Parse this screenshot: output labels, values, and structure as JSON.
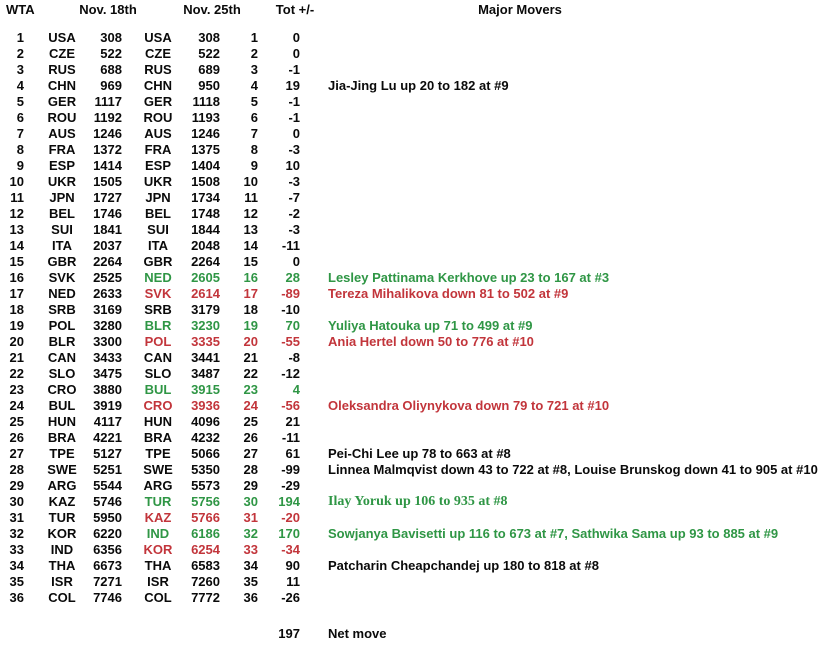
{
  "header": {
    "wta": "WTA",
    "nov18": "Nov. 18th",
    "nov25": "Nov. 25th",
    "tot": "Tot +/-",
    "movers": "Major Movers"
  },
  "colors": {
    "up_green": "#2f9645",
    "down_red": "#c2353b",
    "text_black": "#0a0a0a"
  },
  "rows": [
    {
      "rank": "1",
      "c18": "USA",
      "v18": "308",
      "c25": "USA",
      "v25": "308",
      "tot": "1",
      "pm": "0",
      "change": "none",
      "mover": ""
    },
    {
      "rank": "2",
      "c18": "CZE",
      "v18": "522",
      "c25": "CZE",
      "v25": "522",
      "tot": "2",
      "pm": "0",
      "change": "none",
      "mover": ""
    },
    {
      "rank": "3",
      "c18": "RUS",
      "v18": "688",
      "c25": "RUS",
      "v25": "689",
      "tot": "3",
      "pm": "-1",
      "change": "none",
      "mover": ""
    },
    {
      "rank": "4",
      "c18": "CHN",
      "v18": "969",
      "c25": "CHN",
      "v25": "950",
      "tot": "4",
      "pm": "19",
      "change": "none",
      "mover": "Jia-Jing Lu up 20 to 182 at #9",
      "mover_color": "black"
    },
    {
      "rank": "5",
      "c18": "GER",
      "v18": "1117",
      "c25": "GER",
      "v25": "1118",
      "tot": "5",
      "pm": "-1",
      "change": "none",
      "mover": ""
    },
    {
      "rank": "6",
      "c18": "ROU",
      "v18": "1192",
      "c25": "ROU",
      "v25": "1193",
      "tot": "6",
      "pm": "-1",
      "change": "none",
      "mover": ""
    },
    {
      "rank": "7",
      "c18": "AUS",
      "v18": "1246",
      "c25": "AUS",
      "v25": "1246",
      "tot": "7",
      "pm": "0",
      "change": "none",
      "mover": ""
    },
    {
      "rank": "8",
      "c18": "FRA",
      "v18": "1372",
      "c25": "FRA",
      "v25": "1375",
      "tot": "8",
      "pm": "-3",
      "change": "none",
      "mover": ""
    },
    {
      "rank": "9",
      "c18": "ESP",
      "v18": "1414",
      "c25": "ESP",
      "v25": "1404",
      "tot": "9",
      "pm": "10",
      "change": "none",
      "mover": ""
    },
    {
      "rank": "10",
      "c18": "UKR",
      "v18": "1505",
      "c25": "UKR",
      "v25": "1508",
      "tot": "10",
      "pm": "-3",
      "change": "none",
      "mover": ""
    },
    {
      "rank": "11",
      "c18": "JPN",
      "v18": "1727",
      "c25": "JPN",
      "v25": "1734",
      "tot": "11",
      "pm": "-7",
      "change": "none",
      "mover": ""
    },
    {
      "rank": "12",
      "c18": "BEL",
      "v18": "1746",
      "c25": "BEL",
      "v25": "1748",
      "tot": "12",
      "pm": "-2",
      "change": "none",
      "mover": ""
    },
    {
      "rank": "13",
      "c18": "SUI",
      "v18": "1841",
      "c25": "SUI",
      "v25": "1844",
      "tot": "13",
      "pm": "-3",
      "change": "none",
      "mover": ""
    },
    {
      "rank": "14",
      "c18": "ITA",
      "v18": "2037",
      "c25": "ITA",
      "v25": "2048",
      "tot": "14",
      "pm": "-11",
      "change": "none",
      "mover": ""
    },
    {
      "rank": "15",
      "c18": "GBR",
      "v18": "2264",
      "c25": "GBR",
      "v25": "2264",
      "tot": "15",
      "pm": "0",
      "change": "none",
      "mover": ""
    },
    {
      "rank": "16",
      "c18": "SVK",
      "v18": "2525",
      "c25": "NED",
      "v25": "2605",
      "tot": "16",
      "pm": "28",
      "change": "up",
      "mover": "Lesley Pattinama Kerkhove up 23 to 167 at #3",
      "mover_color": "green"
    },
    {
      "rank": "17",
      "c18": "NED",
      "v18": "2633",
      "c25": "SVK",
      "v25": "2614",
      "tot": "17",
      "pm": "-89",
      "change": "down",
      "mover": "Tereza Mihalikova down 81 to 502 at #9",
      "mover_color": "red"
    },
    {
      "rank": "18",
      "c18": "SRB",
      "v18": "3169",
      "c25": "SRB",
      "v25": "3179",
      "tot": "18",
      "pm": "-10",
      "change": "none",
      "mover": ""
    },
    {
      "rank": "19",
      "c18": "POL",
      "v18": "3280",
      "c25": "BLR",
      "v25": "3230",
      "tot": "19",
      "pm": "70",
      "change": "up",
      "mover": "Yuliya Hatouka up 71 to 499 at #9",
      "mover_color": "green"
    },
    {
      "rank": "20",
      "c18": "BLR",
      "v18": "3300",
      "c25": "POL",
      "v25": "3335",
      "tot": "20",
      "pm": "-55",
      "change": "down",
      "mover": "Ania Hertel down 50 to 776 at #10",
      "mover_color": "red"
    },
    {
      "rank": "21",
      "c18": "CAN",
      "v18": "3433",
      "c25": "CAN",
      "v25": "3441",
      "tot": "21",
      "pm": "-8",
      "change": "none",
      "mover": ""
    },
    {
      "rank": "22",
      "c18": "SLO",
      "v18": "3475",
      "c25": "SLO",
      "v25": "3487",
      "tot": "22",
      "pm": "-12",
      "change": "none",
      "mover": ""
    },
    {
      "rank": "23",
      "c18": "CRO",
      "v18": "3880",
      "c25": "BUL",
      "v25": "3915",
      "tot": "23",
      "pm": "4",
      "change": "up",
      "mover": ""
    },
    {
      "rank": "24",
      "c18": "BUL",
      "v18": "3919",
      "c25": "CRO",
      "v25": "3936",
      "tot": "24",
      "pm": "-56",
      "change": "down",
      "mover": "Oleksandra Oliynykova down 79 to 721 at #10",
      "mover_color": "red"
    },
    {
      "rank": "25",
      "c18": "HUN",
      "v18": "4117",
      "c25": "HUN",
      "v25": "4096",
      "tot": "25",
      "pm": "21",
      "change": "none",
      "mover": ""
    },
    {
      "rank": "26",
      "c18": "BRA",
      "v18": "4221",
      "c25": "BRA",
      "v25": "4232",
      "tot": "26",
      "pm": "-11",
      "change": "none",
      "mover": ""
    },
    {
      "rank": "27",
      "c18": "TPE",
      "v18": "5127",
      "c25": "TPE",
      "v25": "5066",
      "tot": "27",
      "pm": "61",
      "change": "none",
      "mover": "Pei-Chi Lee up 78 to 663 at #8",
      "mover_color": "black"
    },
    {
      "rank": "28",
      "c18": "SWE",
      "v18": "5251",
      "c25": "SWE",
      "v25": "5350",
      "tot": "28",
      "pm": "-99",
      "change": "none",
      "mover": "Linnea Malmqvist down 43 to 722 at #8, Louise Brunskog down 41 to 905 at #10",
      "mover_color": "black"
    },
    {
      "rank": "29",
      "c18": "ARG",
      "v18": "5544",
      "c25": "ARG",
      "v25": "5573",
      "tot": "29",
      "pm": "-29",
      "change": "none",
      "mover": ""
    },
    {
      "rank": "30",
      "c18": "KAZ",
      "v18": "5746",
      "c25": "TUR",
      "v25": "5756",
      "tot": "30",
      "pm": "194",
      "change": "up",
      "mover": "Ilay Yoruk up 106 to 935 at #8",
      "mover_color": "green",
      "mover_serif": true
    },
    {
      "rank": "31",
      "c18": "TUR",
      "v18": "5950",
      "c25": "KAZ",
      "v25": "5766",
      "tot": "31",
      "pm": "-20",
      "change": "down",
      "mover": ""
    },
    {
      "rank": "32",
      "c18": "KOR",
      "v18": "6220",
      "c25": "IND",
      "v25": "6186",
      "tot": "32",
      "pm": "170",
      "change": "up",
      "mover": "Sowjanya Bavisetti up 116 to 673 at #7, Sathwika Sama up 93 to 885 at #9",
      "mover_color": "green"
    },
    {
      "rank": "33",
      "c18": "IND",
      "v18": "6356",
      "c25": "KOR",
      "v25": "6254",
      "tot": "33",
      "pm": "-34",
      "change": "down",
      "mover": ""
    },
    {
      "rank": "34",
      "c18": "THA",
      "v18": "6673",
      "c25": "THA",
      "v25": "6583",
      "tot": "34",
      "pm": "90",
      "change": "none",
      "mover": "Patcharin Cheapchandej up 180 to 818 at #8",
      "mover_color": "black"
    },
    {
      "rank": "35",
      "c18": "ISR",
      "v18": "7271",
      "c25": "ISR",
      "v25": "7260",
      "tot": "35",
      "pm": "11",
      "change": "none",
      "mover": ""
    },
    {
      "rank": "36",
      "c18": "COL",
      "v18": "7746",
      "c25": "COL",
      "v25": "7772",
      "tot": "36",
      "pm": "-26",
      "change": "none",
      "mover": ""
    }
  ],
  "footer": {
    "net_value": "197",
    "net_label": "Net move"
  }
}
